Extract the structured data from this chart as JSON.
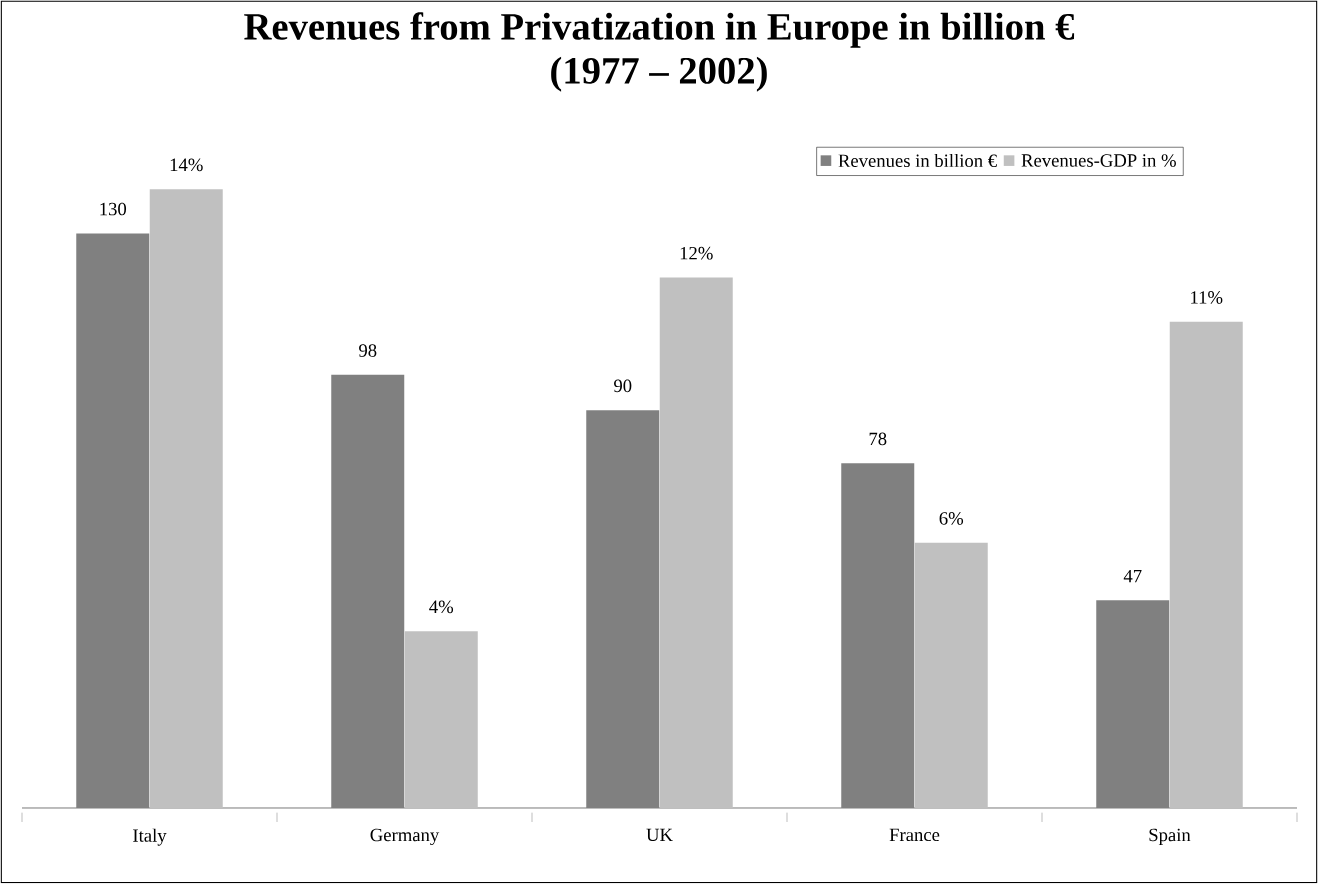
{
  "chart_data": {
    "type": "bar",
    "title": "Revenues from Privatization in Europe in billion €",
    "subtitle": "(1977 – 2002)",
    "categories": [
      "Italy",
      "Germany",
      "UK",
      "France",
      "Spain"
    ],
    "series": [
      {
        "name": "Revenues in billion €",
        "color": "#808080",
        "values": [
          130,
          98,
          90,
          78,
          47
        ],
        "value_labels": [
          "130",
          "98",
          "90",
          "78",
          "47"
        ]
      },
      {
        "name": "Revenues-GDP in %",
        "color": "#c0c0c0",
        "axis": "y2",
        "values": [
          14,
          4,
          12,
          6,
          11
        ],
        "value_labels": [
          "14%",
          "4%",
          "12%",
          "6%",
          "11%"
        ]
      }
    ],
    "ylim": [
      0,
      150
    ],
    "y2lim": [
      0,
      15
    ],
    "tick_labels": "x",
    "legend": "top right"
  }
}
